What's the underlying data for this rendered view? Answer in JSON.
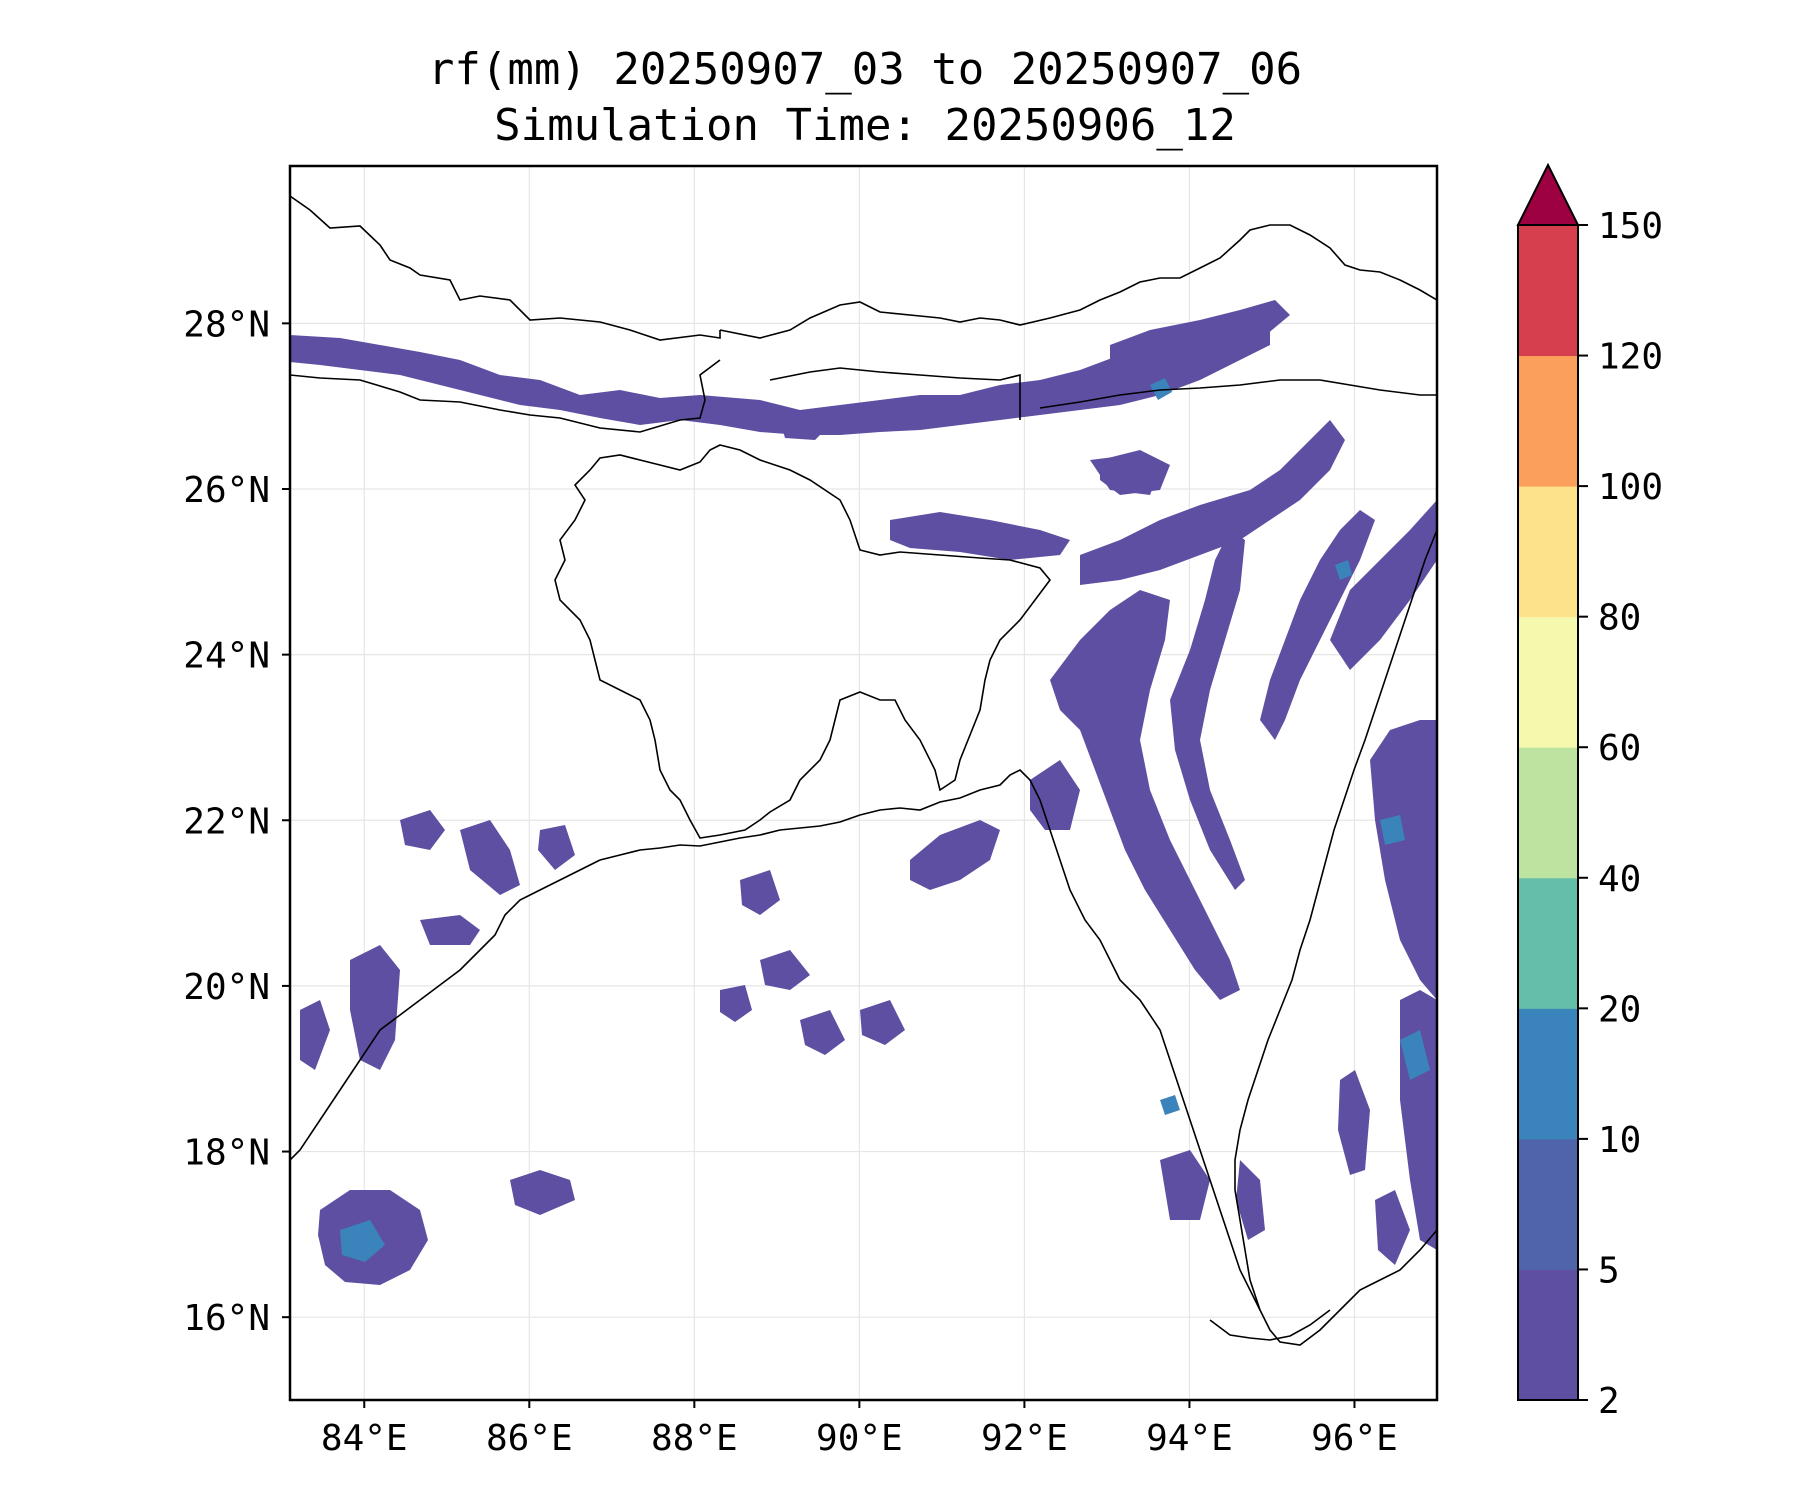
{
  "title": {
    "line1": "rf(mm) 20250907_03 to 20250907_06",
    "line2": "Simulation Time: 20250906_12"
  },
  "map": {
    "lon_range": [
      83.1,
      97.0
    ],
    "lat_range": [
      15.0,
      29.9
    ],
    "lon_ticks": [
      "84°E",
      "86°E",
      "88°E",
      "90°E",
      "92°E",
      "94°E",
      "96°E"
    ],
    "lat_ticks": [
      "28°N",
      "26°N",
      "24°N",
      "22°N",
      "20°N",
      "18°N",
      "16°N"
    ],
    "lon_tick_values": [
      84,
      86,
      88,
      90,
      92,
      94,
      96
    ],
    "lat_tick_values": [
      28,
      26,
      24,
      22,
      20,
      18,
      16
    ],
    "grid": true
  },
  "colorbar": {
    "levels": [
      "2",
      "5",
      "10",
      "20",
      "40",
      "60",
      "80",
      "100",
      "120",
      "150"
    ],
    "colors": [
      "#5e4fa2",
      "#4f64ab",
      "#3b83bb",
      "#65bfa8",
      "#bde3a0",
      "#f4f9ad",
      "#fde18b",
      "#fba05b",
      "#d6404e"
    ],
    "extend_color": "#9e0142",
    "extend": "max"
  }
}
